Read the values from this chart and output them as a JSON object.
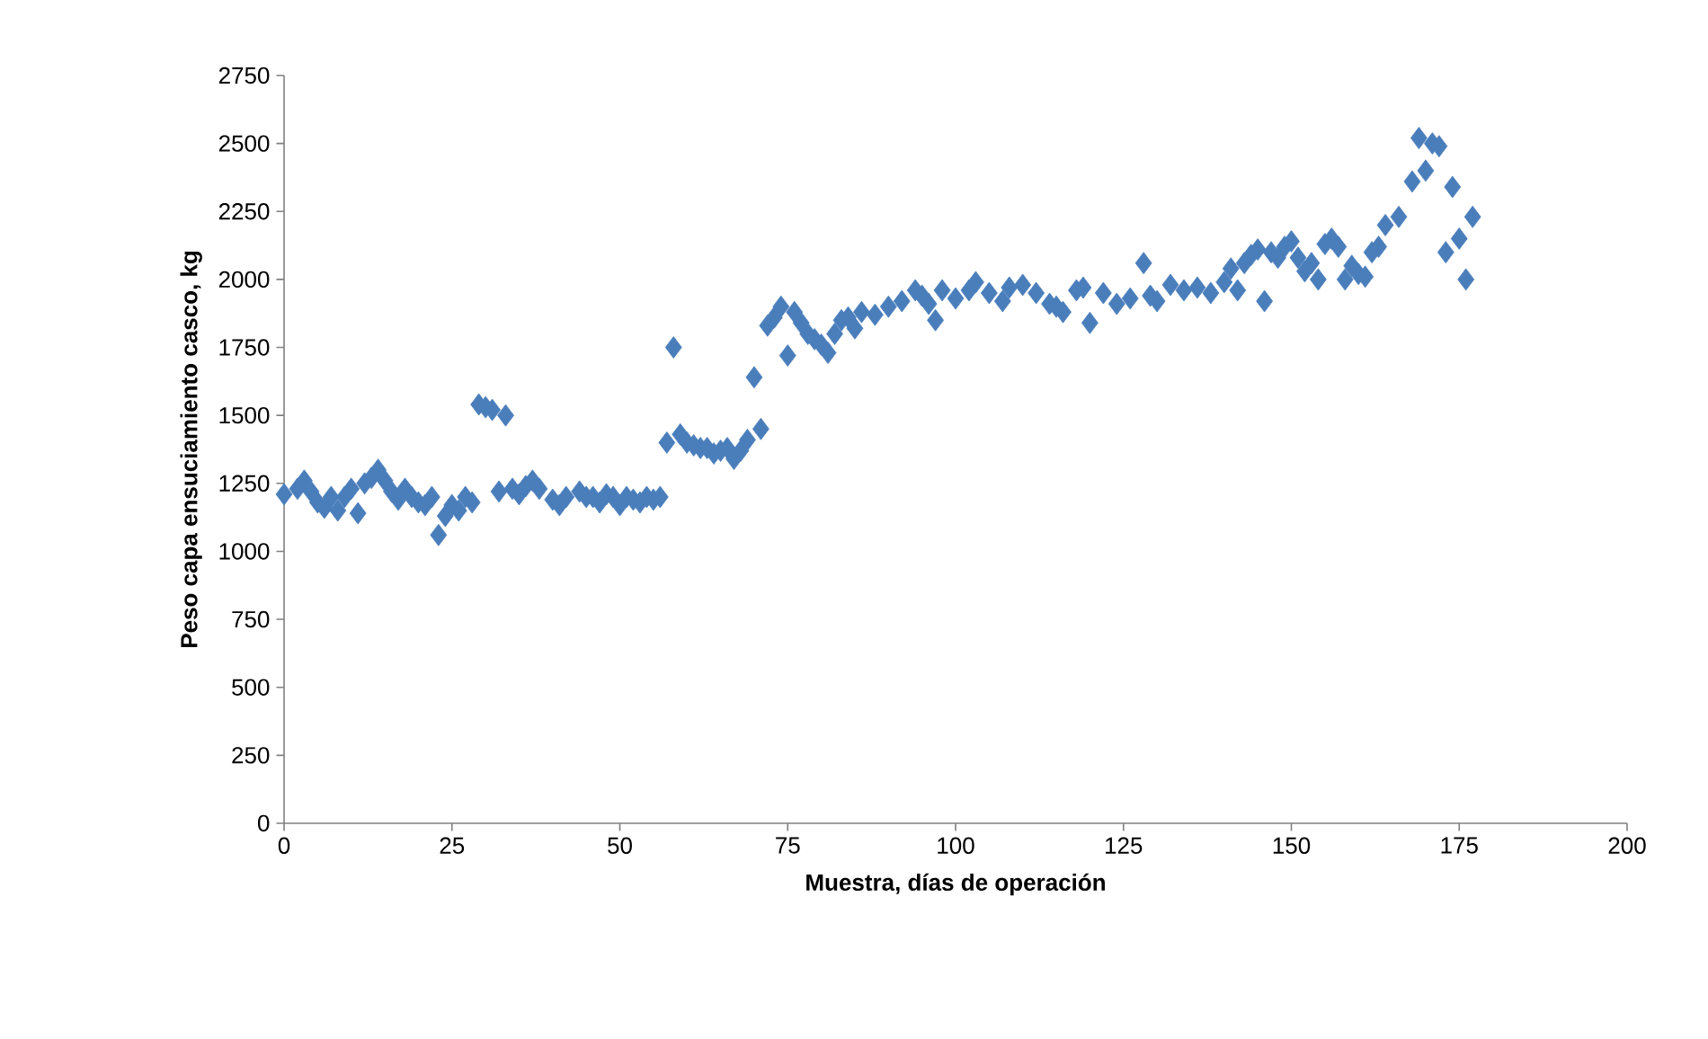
{
  "chart_data": {
    "type": "scatter",
    "xlabel": "Muestra, días de operación",
    "ylabel": "Peso capa ensuciamiento casco, kg",
    "marker": "diamond",
    "xlim": [
      0,
      200
    ],
    "xticks": [
      0,
      25,
      50,
      75,
      100,
      125,
      150,
      175,
      200
    ],
    "ylim": [
      0,
      2750
    ],
    "yticks": [
      0,
      250,
      500,
      750,
      1000,
      1250,
      1500,
      1750,
      2000,
      2250,
      2500,
      2750
    ],
    "series": [
      {
        "color": "#4a7ebb",
        "x": [
          0,
          2,
          3,
          4,
          5,
          6,
          7,
          8,
          9,
          10,
          11,
          12,
          13,
          14,
          15,
          16,
          17,
          18,
          19,
          20,
          21,
          22,
          23,
          24,
          25,
          26,
          27,
          28,
          29,
          30,
          31,
          32,
          33,
          34,
          35,
          36,
          37,
          38,
          40,
          41,
          42,
          44,
          45,
          46,
          47,
          48,
          49,
          50,
          51,
          52,
          53,
          54,
          55,
          56,
          57,
          58,
          59,
          60,
          61,
          62,
          63,
          64,
          65,
          66,
          67,
          68,
          69,
          70,
          71,
          72,
          73,
          74,
          75,
          76,
          77,
          78,
          79,
          80,
          81,
          82,
          83,
          84,
          85,
          86,
          88,
          90,
          92,
          94,
          95,
          96,
          97,
          98,
          100,
          102,
          103,
          105,
          107,
          108,
          110,
          112,
          114,
          115,
          116,
          118,
          119,
          120,
          122,
          124,
          126,
          128,
          129,
          130,
          132,
          134,
          136,
          138,
          140,
          141,
          142,
          143,
          144,
          145,
          146,
          147,
          148,
          149,
          150,
          151,
          152,
          153,
          154,
          155,
          156,
          157,
          158,
          159,
          160,
          161,
          162,
          163,
          164,
          166,
          168,
          169,
          170,
          171,
          172,
          173,
          174,
          175,
          176,
          177
        ],
        "values": [
          1210,
          1230,
          1260,
          1220,
          1180,
          1160,
          1200,
          1150,
          1200,
          1230,
          1140,
          1250,
          1270,
          1300,
          1260,
          1220,
          1190,
          1230,
          1200,
          1180,
          1170,
          1200,
          1060,
          1130,
          1170,
          1150,
          1200,
          1180,
          1540,
          1530,
          1520,
          1220,
          1500,
          1230,
          1210,
          1240,
          1260,
          1230,
          1190,
          1170,
          1200,
          1220,
          1200,
          1200,
          1180,
          1210,
          1200,
          1170,
          1200,
          1190,
          1180,
          1200,
          1190,
          1200,
          1400,
          1750,
          1430,
          1400,
          1390,
          1380,
          1380,
          1360,
          1370,
          1380,
          1340,
          1370,
          1410,
          1640,
          1450,
          1830,
          1860,
          1900,
          1720,
          1880,
          1840,
          1800,
          1780,
          1760,
          1730,
          1800,
          1850,
          1860,
          1820,
          1880,
          1870,
          1900,
          1920,
          1960,
          1940,
          1910,
          1850,
          1960,
          1930,
          1960,
          1990,
          1950,
          1920,
          1970,
          1980,
          1950,
          1910,
          1900,
          1880,
          1960,
          1970,
          1840,
          1950,
          1910,
          1930,
          2060,
          1940,
          1920,
          1980,
          1960,
          1970,
          1950,
          1990,
          2040,
          1960,
          2060,
          2090,
          2110,
          1920,
          2100,
          2080,
          2120,
          2140,
          2080,
          2030,
          2060,
          2000,
          2130,
          2150,
          2120,
          2000,
          2050,
          2020,
          2010,
          2100,
          2120,
          2200,
          2230,
          2360,
          2520,
          2400,
          2500,
          2490,
          2100,
          2340,
          2150,
          2000,
          2230
        ]
      }
    ]
  }
}
